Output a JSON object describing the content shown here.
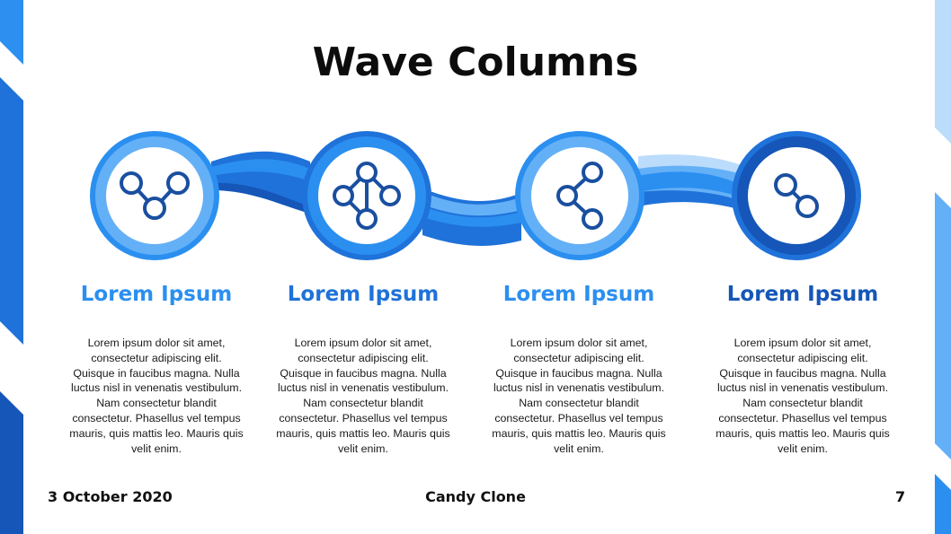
{
  "slide": {
    "title": "Wave Columns",
    "columns": [
      {
        "title": "Lorem Ipsum",
        "color": "#2b8ff0",
        "icon": "share-nodes-v-icon",
        "body": "Lorem ipsum dolor sit amet, consectetur adipiscing elit. Quisque in faucibus magna. Nulla luctus nisl in venenatis vestibulum. Nam consectetur blandit consectetur.  Phasellus vel tempus mauris, quis mattis leo. Mauris quis velit enim."
      },
      {
        "title": "Lorem Ipsum",
        "color": "#1f72d9",
        "icon": "network-nodes-icon",
        "body": "Lorem ipsum dolor sit amet, consectetur adipiscing elit. Quisque in faucibus magna. Nulla luctus nisl in venenatis vestibulum. Nam consectetur blandit consectetur.  Phasellus vel tempus mauris, quis mattis leo. Mauris quis velit enim."
      },
      {
        "title": "Lorem Ipsum",
        "color": "#2b8ff0",
        "icon": "share-icon",
        "body": "Lorem ipsum dolor sit amet, consectetur adipiscing elit. Quisque in faucibus magna. Nulla luctus nisl in venenatis vestibulum. Nam consectetur blandit consectetur.  Phasellus vel tempus mauris, quis mattis leo. Mauris quis velit enim."
      },
      {
        "title": "Lorem Ipsum",
        "color": "#1556b8",
        "icon": "link-nodes-icon",
        "body": "Lorem ipsum dolor sit amet, consectetur adipiscing elit. Quisque in faucibus magna. Nulla luctus nisl in venenatis vestibulum. Nam consectetur blandit consectetur.  Phasellus vel tempus mauris, quis mattis leo. Mauris quis velit enim."
      }
    ]
  },
  "footer": {
    "date": "3 October 2020",
    "author": "Candy Clone",
    "page_number": "7"
  },
  "colors": {
    "light_blue": "#64b0f7",
    "mid_blue": "#2b8ff0",
    "blue": "#1f72d9",
    "dark_blue": "#1556b8",
    "icon_blue": "#1a4fa0"
  }
}
